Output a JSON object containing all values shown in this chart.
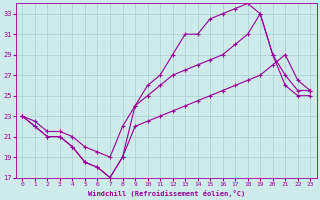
{
  "xlabel": "Windchill (Refroidissement éolien,°C)",
  "background_color": "#ceeaeb",
  "grid_color": "#a8cfd2",
  "line_color": "#990099",
  "xlim": [
    -0.5,
    23.5
  ],
  "ylim": [
    17,
    34
  ],
  "xticks": [
    0,
    1,
    2,
    3,
    4,
    5,
    6,
    7,
    8,
    9,
    10,
    11,
    12,
    13,
    14,
    15,
    16,
    17,
    18,
    19,
    20,
    21,
    22,
    23
  ],
  "yticks": [
    17,
    19,
    21,
    23,
    25,
    27,
    29,
    31,
    33
  ],
  "line1_x": [
    0,
    1,
    2,
    3,
    4,
    5,
    6,
    7,
    8,
    9,
    10,
    11,
    12,
    13,
    14,
    15,
    16,
    17,
    18,
    19,
    20,
    21,
    22,
    23
  ],
  "line1_y": [
    23,
    22,
    21,
    21,
    20,
    18.5,
    18,
    17,
    19,
    24,
    26,
    27,
    29,
    31,
    31,
    32.5,
    33,
    33.5,
    34,
    33,
    29,
    26,
    25,
    25
  ],
  "line2_x": [
    0,
    1,
    2,
    3,
    4,
    5,
    6,
    7,
    8,
    9,
    10,
    11,
    12,
    13,
    14,
    15,
    16,
    17,
    18,
    19,
    20,
    21,
    22,
    23
  ],
  "line2_y": [
    23,
    22.5,
    21.5,
    21.5,
    21,
    20,
    19.5,
    19,
    22,
    24,
    25,
    26,
    27,
    27.5,
    28,
    28.5,
    29,
    30,
    31,
    33,
    29,
    27,
    25.5,
    25.5
  ],
  "line3_x": [
    0,
    1,
    2,
    3,
    4,
    5,
    6,
    7,
    8,
    9,
    10,
    11,
    12,
    13,
    14,
    15,
    16,
    17,
    18,
    19,
    20,
    21,
    22,
    23
  ],
  "line3_y": [
    23,
    22,
    21,
    21,
    20,
    18.5,
    18,
    17,
    19,
    22,
    22.5,
    23,
    23.5,
    24,
    24.5,
    25,
    25.5,
    26,
    26.5,
    27,
    28,
    29,
    26.5,
    25.5
  ]
}
